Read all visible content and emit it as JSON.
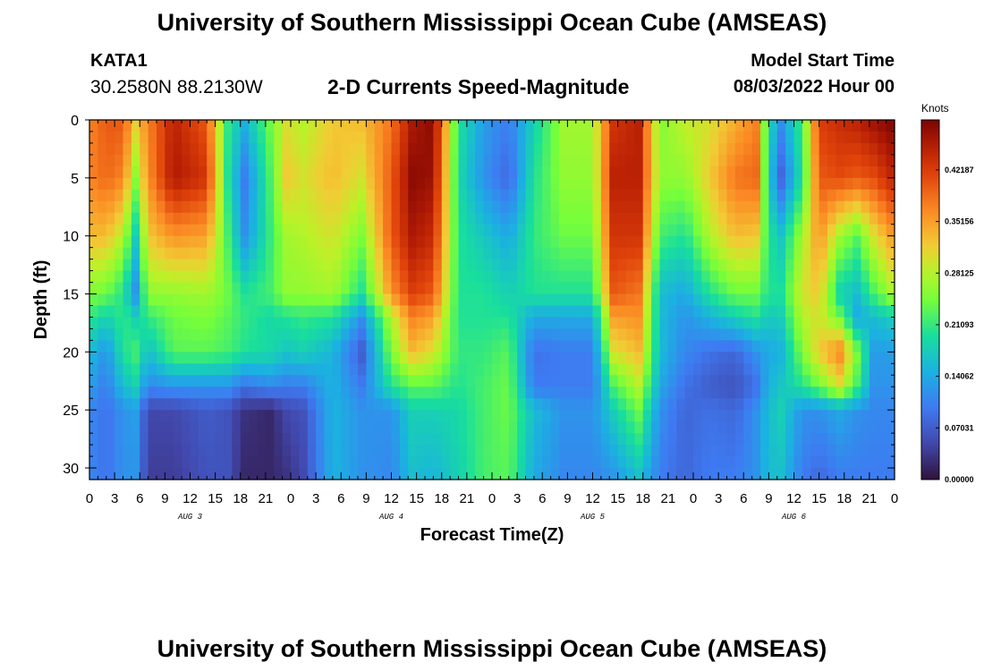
{
  "header": {
    "title": "University of Southern Mississippi Ocean Cube (AMSEAS)",
    "station_id": "KATA1",
    "station_coords": "30.2580N  88.2130W",
    "model_start_label": "Model Start Time",
    "model_start_value": "08/03/2022 Hour 00"
  },
  "footer": {
    "title_repeat": "University of Southern Mississippi Ocean Cube (AMSEAS)"
  },
  "chart_data": {
    "type": "heatmap",
    "title": "2-D Currents Speed-Magnitude",
    "xlabel": "Forecast Time(Z)",
    "ylabel": "Depth (ft)",
    "colorbar_label": "Knots",
    "colorbar_ticks": [
      "0.00000",
      "0.07031",
      "0.14062",
      "0.21093",
      "0.28125",
      "0.35156",
      "0.42187"
    ],
    "colorbar_values": [
      0.0,
      0.07031,
      0.14062,
      0.21093,
      0.28125,
      0.35156,
      0.42187
    ],
    "color_range": [
      0.0,
      0.49
    ],
    "xlim": [
      0,
      96
    ],
    "ylim": [
      31,
      0
    ],
    "x_ticks": [
      0,
      3,
      6,
      9,
      12,
      15,
      18,
      21,
      24,
      27,
      30,
      33,
      36,
      39,
      42,
      45,
      48,
      51,
      54,
      57,
      60,
      63,
      66,
      69,
      72,
      75,
      78,
      81,
      84,
      87,
      90,
      93,
      96
    ],
    "x_tick_labels": [
      "0",
      "3",
      "6",
      "9",
      "12",
      "15",
      "18",
      "21",
      "0",
      "3",
      "6",
      "9",
      "12",
      "15",
      "18",
      "21",
      "0",
      "3",
      "6",
      "9",
      "12",
      "15",
      "18",
      "21",
      "0",
      "3",
      "6",
      "9",
      "12",
      "15",
      "18",
      "21",
      "0"
    ],
    "y_ticks": [
      0,
      5,
      10,
      15,
      20,
      25,
      30
    ],
    "y_tick_labels": [
      "0",
      "5",
      "10",
      "15",
      "20",
      "25",
      "30"
    ],
    "day_labels": [
      {
        "x": 12,
        "label": "AUG 3"
      },
      {
        "x": 36,
        "label": "AUG 4"
      },
      {
        "x": 60,
        "label": "AUG 5"
      },
      {
        "x": 84,
        "label": "AUG 6"
      }
    ],
    "profile_hours": [
      0,
      2,
      4,
      5.5,
      7,
      10,
      14,
      16.5,
      18.5,
      21.5,
      23.5,
      25.5,
      29,
      32.5,
      36,
      38.5,
      41,
      44,
      47,
      50,
      53,
      56.5,
      60,
      62.5,
      65.5,
      68,
      71,
      74,
      77,
      79.5,
      81,
      82.5,
      85,
      87,
      89.5,
      91.5,
      93.5,
      96
    ],
    "profile_depths": [
      0,
      5,
      10,
      15,
      17,
      20,
      23,
      25,
      31
    ],
    "speed_profiles": [
      [
        0.37,
        0.37,
        0.33,
        0.25,
        0.21,
        0.16,
        0.13,
        0.11,
        0.11
      ],
      [
        0.4,
        0.39,
        0.33,
        0.24,
        0.18,
        0.12,
        0.1,
        0.09,
        0.09
      ],
      [
        0.4,
        0.37,
        0.28,
        0.2,
        0.21,
        0.2,
        0.16,
        0.12,
        0.12
      ],
      [
        0.32,
        0.26,
        0.18,
        0.12,
        0.18,
        0.22,
        0.18,
        0.13,
        0.12
      ],
      [
        0.37,
        0.36,
        0.32,
        0.26,
        0.21,
        0.16,
        0.11,
        0.05,
        0.04
      ],
      [
        0.45,
        0.46,
        0.36,
        0.26,
        0.24,
        0.23,
        0.12,
        0.05,
        0.04
      ],
      [
        0.4,
        0.43,
        0.35,
        0.27,
        0.25,
        0.23,
        0.12,
        0.07,
        0.06
      ],
      [
        0.21,
        0.2,
        0.22,
        0.24,
        0.23,
        0.22,
        0.12,
        0.06,
        0.06
      ],
      [
        0.15,
        0.1,
        0.12,
        0.2,
        0.21,
        0.2,
        0.09,
        0.03,
        0.02
      ],
      [
        0.24,
        0.22,
        0.21,
        0.22,
        0.19,
        0.19,
        0.11,
        0.02,
        0.02
      ],
      [
        0.3,
        0.32,
        0.27,
        0.26,
        0.2,
        0.17,
        0.1,
        0.05,
        0.03
      ],
      [
        0.28,
        0.3,
        0.28,
        0.26,
        0.21,
        0.18,
        0.1,
        0.06,
        0.05
      ],
      [
        0.32,
        0.33,
        0.3,
        0.27,
        0.2,
        0.15,
        0.15,
        0.15,
        0.15
      ],
      [
        0.33,
        0.3,
        0.25,
        0.2,
        0.12,
        0.07,
        0.1,
        0.12,
        0.12
      ],
      [
        0.38,
        0.4,
        0.4,
        0.36,
        0.28,
        0.25,
        0.2,
        0.12,
        0.11
      ],
      [
        0.46,
        0.48,
        0.46,
        0.42,
        0.37,
        0.33,
        0.23,
        0.18,
        0.16
      ],
      [
        0.48,
        0.47,
        0.44,
        0.4,
        0.35,
        0.3,
        0.23,
        0.18,
        0.15
      ],
      [
        0.2,
        0.19,
        0.2,
        0.2,
        0.2,
        0.21,
        0.2,
        0.19,
        0.18
      ],
      [
        0.13,
        0.12,
        0.17,
        0.2,
        0.2,
        0.21,
        0.22,
        0.22,
        0.22
      ],
      [
        0.1,
        0.08,
        0.14,
        0.18,
        0.2,
        0.23,
        0.24,
        0.24,
        0.23
      ],
      [
        0.18,
        0.2,
        0.21,
        0.2,
        0.14,
        0.09,
        0.1,
        0.16,
        0.14
      ],
      [
        0.27,
        0.26,
        0.24,
        0.2,
        0.14,
        0.1,
        0.1,
        0.12,
        0.11
      ],
      [
        0.27,
        0.26,
        0.24,
        0.2,
        0.14,
        0.1,
        0.1,
        0.12,
        0.11
      ],
      [
        0.43,
        0.45,
        0.43,
        0.4,
        0.35,
        0.3,
        0.22,
        0.18,
        0.12
      ],
      [
        0.45,
        0.45,
        0.43,
        0.38,
        0.36,
        0.33,
        0.28,
        0.24,
        0.16
      ],
      [
        0.25,
        0.26,
        0.22,
        0.16,
        0.16,
        0.16,
        0.14,
        0.12,
        0.1
      ],
      [
        0.29,
        0.26,
        0.2,
        0.14,
        0.12,
        0.11,
        0.09,
        0.08,
        0.08
      ],
      [
        0.3,
        0.32,
        0.28,
        0.2,
        0.15,
        0.09,
        0.07,
        0.09,
        0.1
      ],
      [
        0.34,
        0.38,
        0.33,
        0.24,
        0.18,
        0.08,
        0.06,
        0.08,
        0.1
      ],
      [
        0.37,
        0.39,
        0.32,
        0.24,
        0.2,
        0.12,
        0.09,
        0.12,
        0.12
      ],
      [
        0.19,
        0.17,
        0.2,
        0.2,
        0.17,
        0.14,
        0.15,
        0.16,
        0.16
      ],
      [
        0.12,
        0.08,
        0.17,
        0.2,
        0.18,
        0.15,
        0.17,
        0.18,
        0.16
      ],
      [
        0.22,
        0.2,
        0.27,
        0.3,
        0.28,
        0.25,
        0.2,
        0.12,
        0.1
      ],
      [
        0.42,
        0.4,
        0.36,
        0.32,
        0.3,
        0.32,
        0.24,
        0.12,
        0.08
      ],
      [
        0.44,
        0.41,
        0.27,
        0.18,
        0.24,
        0.37,
        0.3,
        0.14,
        0.1
      ],
      [
        0.45,
        0.4,
        0.23,
        0.16,
        0.14,
        0.25,
        0.22,
        0.12,
        0.1
      ],
      [
        0.47,
        0.41,
        0.3,
        0.22,
        0.16,
        0.13,
        0.12,
        0.11,
        0.1
      ],
      [
        0.49,
        0.45,
        0.36,
        0.28,
        0.18,
        0.13,
        0.12,
        0.11,
        0.1
      ]
    ]
  }
}
